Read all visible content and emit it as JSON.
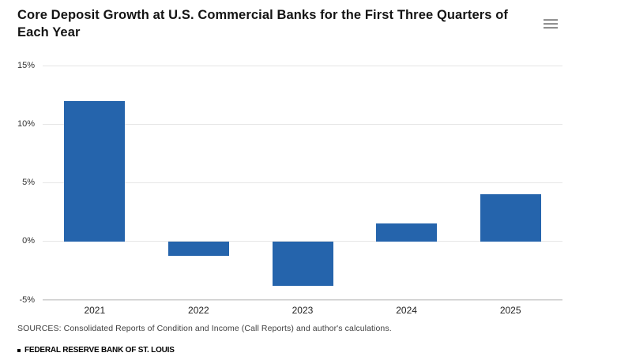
{
  "chart": {
    "title": "Core Deposit Growth at U.S. Commercial Banks for the First Three Quarters of Each Year",
    "menu_icon": "hamburger-icon",
    "colors": {
      "bar": "#2564ac",
      "gridline": "#e6e6e6",
      "axis_line": "#cccccc",
      "title_text": "#141414",
      "axis_label_text": "#333333"
    }
  },
  "chart_data": {
    "type": "bar",
    "title": "Core Deposit Growth at U.S. Commercial Banks for the First Three Quarters of Each Year",
    "categories": [
      "2021",
      "2022",
      "2023",
      "2024",
      "2025"
    ],
    "values": [
      12.0,
      -1.2,
      -3.8,
      1.5,
      4.0
    ],
    "xlabel": "",
    "ylabel": "",
    "ylim": [
      -5,
      15
    ],
    "ytick_step": 5,
    "yticks": [
      -5,
      0,
      5,
      10,
      15
    ],
    "ytick_labels": [
      "-5%",
      "0%",
      "5%",
      "10%",
      "15%"
    ],
    "grid": true,
    "legend": false
  },
  "footer": {
    "sources": "SOURCES: Consolidated Reports of Condition and Income (Call Reports) and author's calculations.",
    "branding": "FEDERAL RESERVE BANK OF ST. LOUIS"
  }
}
